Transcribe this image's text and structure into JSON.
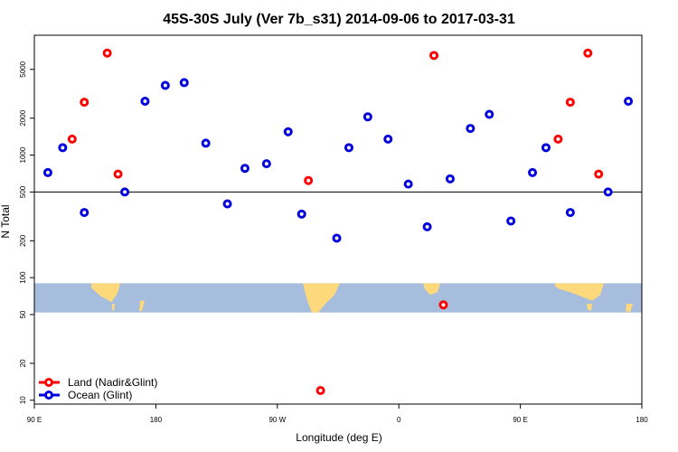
{
  "chart_data": {
    "type": "scatter",
    "title": "45S-30S July (Ver 7b_s31)   2014-09-06 to 2017-03-31",
    "xlabel": "Longitude (deg E)",
    "ylabel": "N Total",
    "x_scale": "linear",
    "y_scale": "log",
    "xlim": [
      90,
      540
    ],
    "ylim": [
      9.3,
      9500
    ],
    "x_ticks": [
      {
        "value": 90,
        "label": "90 E"
      },
      {
        "value": 180,
        "label": "180"
      },
      {
        "value": 270,
        "label": "90 W"
      },
      {
        "value": 360,
        "label": "0"
      },
      {
        "value": 450,
        "label": "90 E"
      },
      {
        "value": 540,
        "label": "180"
      }
    ],
    "y_ticks": [
      {
        "value": 10,
        "label": "10"
      },
      {
        "value": 20,
        "label": "20"
      },
      {
        "value": 50,
        "label": "50"
      },
      {
        "value": 100,
        "label": "100"
      },
      {
        "value": 200,
        "label": "200"
      },
      {
        "value": 500,
        "label": "500"
      },
      {
        "value": 1000,
        "label": "1000"
      },
      {
        "value": 2000,
        "label": "2000"
      },
      {
        "value": 5000,
        "label": "5000"
      }
    ],
    "reference_line": {
      "y": 500
    },
    "map_band": {
      "y_range": [
        52,
        90
      ],
      "ocean_color": "#a7bddd",
      "land_color": "#fdd97b"
    },
    "legend": {
      "position": "bottom-left"
    },
    "series": [
      {
        "name": "Land (Nadir&Glint)",
        "color": "#ff0000",
        "points": [
          {
            "x": 118,
            "y": 1350
          },
          {
            "x": 127,
            "y": 2700
          },
          {
            "x": 144,
            "y": 6800
          },
          {
            "x": 152,
            "y": 700
          },
          {
            "x": 293,
            "y": 620
          },
          {
            "x": 302,
            "y": 12
          },
          {
            "x": 386,
            "y": 6500
          },
          {
            "x": 393,
            "y": 60
          },
          {
            "x": 478,
            "y": 1350
          },
          {
            "x": 487,
            "y": 2700
          },
          {
            "x": 500,
            "y": 6800
          },
          {
            "x": 508,
            "y": 700
          }
        ]
      },
      {
        "name": "Ocean (Glint)",
        "color": "#0000dd",
        "points": [
          {
            "x": 100,
            "y": 720
          },
          {
            "x": 111,
            "y": 1150
          },
          {
            "x": 127,
            "y": 340
          },
          {
            "x": 157,
            "y": 500
          },
          {
            "x": 172,
            "y": 2750
          },
          {
            "x": 187,
            "y": 3700
          },
          {
            "x": 201,
            "y": 3900
          },
          {
            "x": 217,
            "y": 1250
          },
          {
            "x": 233,
            "y": 400
          },
          {
            "x": 246,
            "y": 780
          },
          {
            "x": 262,
            "y": 850
          },
          {
            "x": 278,
            "y": 1550
          },
          {
            "x": 288,
            "y": 330
          },
          {
            "x": 314,
            "y": 210
          },
          {
            "x": 323,
            "y": 1150
          },
          {
            "x": 337,
            "y": 2050
          },
          {
            "x": 352,
            "y": 1350
          },
          {
            "x": 367,
            "y": 580
          },
          {
            "x": 381,
            "y": 260
          },
          {
            "x": 398,
            "y": 640
          },
          {
            "x": 413,
            "y": 1650
          },
          {
            "x": 427,
            "y": 2150
          },
          {
            "x": 443,
            "y": 290
          },
          {
            "x": 459,
            "y": 720
          },
          {
            "x": 469,
            "y": 1150
          },
          {
            "x": 487,
            "y": 340
          },
          {
            "x": 515,
            "y": 500
          },
          {
            "x": 530,
            "y": 2750
          }
        ]
      }
    ]
  }
}
